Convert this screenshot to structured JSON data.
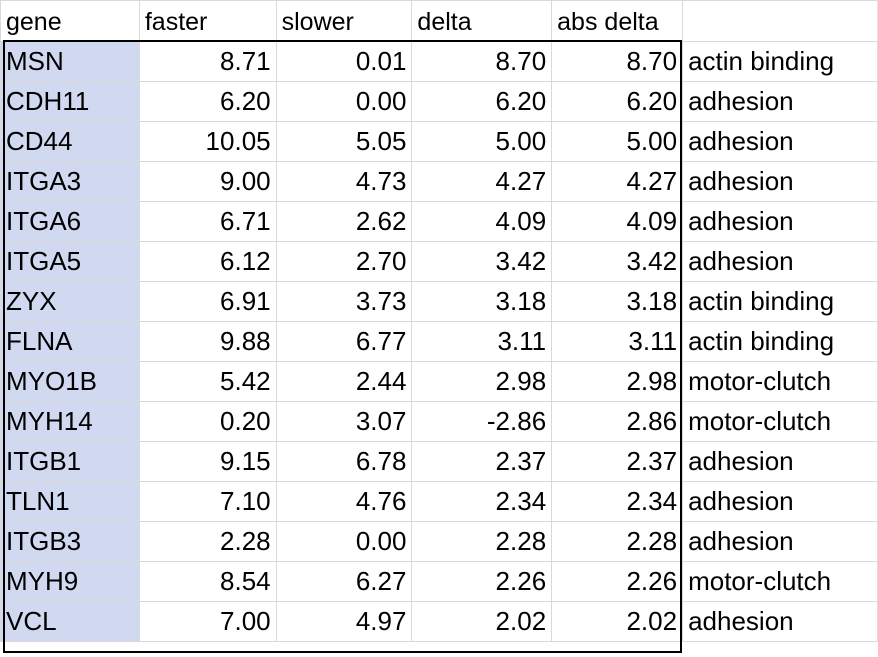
{
  "columns": [
    "gene",
    "faster",
    "slower",
    "delta",
    "abs delta",
    ""
  ],
  "rows": [
    {
      "gene": "MSN",
      "faster": "8.71",
      "slower": "0.01",
      "delta": "8.70",
      "abs_delta": "8.70",
      "category": "actin binding"
    },
    {
      "gene": "CDH11",
      "faster": "6.20",
      "slower": "0.00",
      "delta": "6.20",
      "abs_delta": "6.20",
      "category": "adhesion"
    },
    {
      "gene": "CD44",
      "faster": "10.05",
      "slower": "5.05",
      "delta": "5.00",
      "abs_delta": "5.00",
      "category": "adhesion"
    },
    {
      "gene": "ITGA3",
      "faster": "9.00",
      "slower": "4.73",
      "delta": "4.27",
      "abs_delta": "4.27",
      "category": "adhesion"
    },
    {
      "gene": "ITGA6",
      "faster": "6.71",
      "slower": "2.62",
      "delta": "4.09",
      "abs_delta": "4.09",
      "category": "adhesion"
    },
    {
      "gene": "ITGA5",
      "faster": "6.12",
      "slower": "2.70",
      "delta": "3.42",
      "abs_delta": "3.42",
      "category": "adhesion"
    },
    {
      "gene": "ZYX",
      "faster": "6.91",
      "slower": "3.73",
      "delta": "3.18",
      "abs_delta": "3.18",
      "category": "actin binding"
    },
    {
      "gene": "FLNA",
      "faster": "9.88",
      "slower": "6.77",
      "delta": "3.11",
      "abs_delta": "3.11",
      "category": "actin binding"
    },
    {
      "gene": "MYO1B",
      "faster": "5.42",
      "slower": "2.44",
      "delta": "2.98",
      "abs_delta": "2.98",
      "category": "motor-clutch"
    },
    {
      "gene": "MYH14",
      "faster": "0.20",
      "slower": "3.07",
      "delta": "-2.86",
      "abs_delta": "2.86",
      "category": "motor-clutch"
    },
    {
      "gene": "ITGB1",
      "faster": "9.15",
      "slower": "6.78",
      "delta": "2.37",
      "abs_delta": "2.37",
      "category": "adhesion"
    },
    {
      "gene": "TLN1",
      "faster": "7.10",
      "slower": "4.76",
      "delta": "2.34",
      "abs_delta": "2.34",
      "category": "adhesion"
    },
    {
      "gene": "ITGB3",
      "faster": "2.28",
      "slower": "0.00",
      "delta": "2.28",
      "abs_delta": "2.28",
      "category": "adhesion"
    },
    {
      "gene": "MYH9",
      "faster": "8.54",
      "slower": "6.27",
      "delta": "2.26",
      "abs_delta": "2.26",
      "category": "motor-clutch"
    },
    {
      "gene": "VCL",
      "faster": "7.00",
      "slower": "4.97",
      "delta": "2.02",
      "abs_delta": "2.02",
      "category": "adhesion"
    }
  ],
  "colors": {
    "gene_fill": "#d1d9f0",
    "gridline": "#d9d9d9",
    "outline": "#000000"
  }
}
